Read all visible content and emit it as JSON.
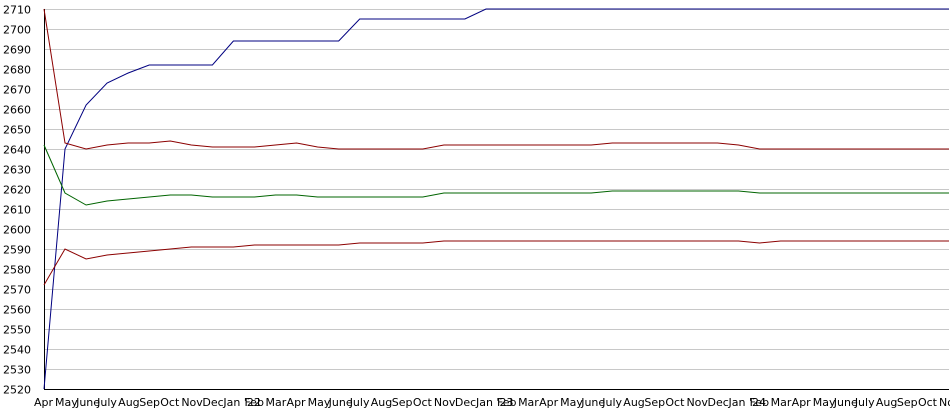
{
  "chart_data": {
    "type": "line",
    "title": "",
    "xlabel": "",
    "ylabel": "",
    "ylim": [
      2520,
      2710
    ],
    "grid": true,
    "legend": "none",
    "y_ticks": [
      2520,
      2530,
      2540,
      2550,
      2560,
      2570,
      2580,
      2590,
      2600,
      2610,
      2620,
      2630,
      2640,
      2650,
      2660,
      2670,
      2680,
      2690,
      2700,
      2710
    ],
    "x_tick_labels": [
      "Apr",
      "May",
      "June",
      "July",
      "Aug",
      "Sep",
      "Oct",
      "Nov",
      "Dec",
      "Jan '22",
      "Feb",
      "Mar",
      "Apr",
      "May",
      "June",
      "July",
      "Aug",
      "Sep",
      "Oct",
      "Nov",
      "Dec",
      "Jan '23",
      "Feb",
      "Mar",
      "Apr",
      "May",
      "June",
      "July",
      "Aug",
      "Sep",
      "Oct",
      "Nov",
      "Dec",
      "Jan '24",
      "Feb",
      "Mar",
      "Apr",
      "May",
      "June",
      "July",
      "Aug",
      "Sep",
      "Oct",
      "Nov"
    ],
    "series": [
      {
        "color": "#000080",
        "values": [
          2520,
          2640,
          2662,
          2673,
          2678,
          2682,
          2682,
          2682,
          2682,
          2694,
          2694,
          2694,
          2694,
          2694,
          2694,
          2705,
          2705,
          2705,
          2705,
          2705,
          2705,
          2710,
          2710,
          2710,
          2710,
          2710,
          2710,
          2710,
          2710,
          2710,
          2710,
          2710,
          2710,
          2710,
          2710,
          2710,
          2710,
          2710,
          2710,
          2710,
          2710,
          2710,
          2710,
          2710
        ]
      },
      {
        "color": "#8b0000",
        "values": [
          2710,
          2643,
          2640,
          2642,
          2643,
          2643,
          2644,
          2642,
          2641,
          2641,
          2641,
          2642,
          2643,
          2641,
          2640,
          2640,
          2640,
          2640,
          2640,
          2642,
          2642,
          2642,
          2642,
          2642,
          2642,
          2642,
          2642,
          2643,
          2643,
          2643,
          2643,
          2643,
          2643,
          2642,
          2640,
          2640,
          2640,
          2640,
          2640,
          2640,
          2640,
          2640,
          2640,
          2640
        ]
      },
      {
        "color": "#006400",
        "values": [
          2642,
          2618,
          2612,
          2614,
          2615,
          2616,
          2617,
          2617,
          2616,
          2616,
          2616,
          2617,
          2617,
          2616,
          2616,
          2616,
          2616,
          2616,
          2616,
          2618,
          2618,
          2618,
          2618,
          2618,
          2618,
          2618,
          2618,
          2619,
          2619,
          2619,
          2619,
          2619,
          2619,
          2619,
          2618,
          2618,
          2618,
          2618,
          2618,
          2618,
          2618,
          2618,
          2618,
          2618
        ]
      },
      {
        "color": "#8b0000",
        "values": [
          2572,
          2590,
          2585,
          2587,
          2588,
          2589,
          2590,
          2591,
          2591,
          2591,
          2592,
          2592,
          2592,
          2592,
          2592,
          2593,
          2593,
          2593,
          2593,
          2594,
          2594,
          2594,
          2594,
          2594,
          2594,
          2594,
          2594,
          2594,
          2594,
          2594,
          2594,
          2594,
          2594,
          2594,
          2593,
          2594,
          2594,
          2594,
          2594,
          2594,
          2594,
          2594,
          2594,
          2594
        ]
      }
    ]
  }
}
